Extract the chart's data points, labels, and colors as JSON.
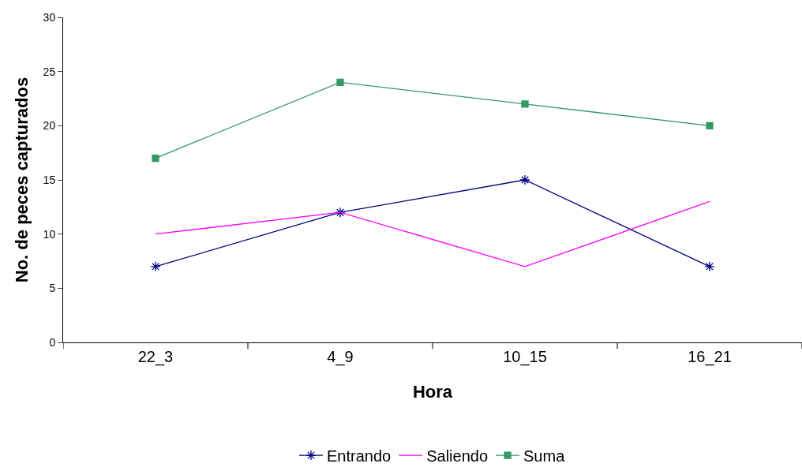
{
  "chart_data": {
    "type": "line",
    "xlabel": "Hora",
    "ylabel": "No. de peces capturados",
    "categories": [
      "22_3",
      "4_9",
      "10_15",
      "16_21"
    ],
    "series": [
      {
        "name": "Entrando",
        "color": "#000080",
        "marker": "cross",
        "values": [
          7,
          12,
          15,
          7
        ]
      },
      {
        "name": "Saliendo",
        "color": "#ff00ff",
        "marker": "none",
        "values": [
          10,
          12,
          7,
          13
        ]
      },
      {
        "name": "Suma",
        "color": "#339966",
        "marker": "square",
        "values": [
          17,
          24,
          22,
          20
        ]
      }
    ],
    "ylim": [
      0,
      30
    ],
    "yticks": [
      0,
      5,
      10,
      15,
      20,
      25,
      30
    ],
    "grid": false,
    "legend": "bottom",
    "line_style": "solid"
  }
}
